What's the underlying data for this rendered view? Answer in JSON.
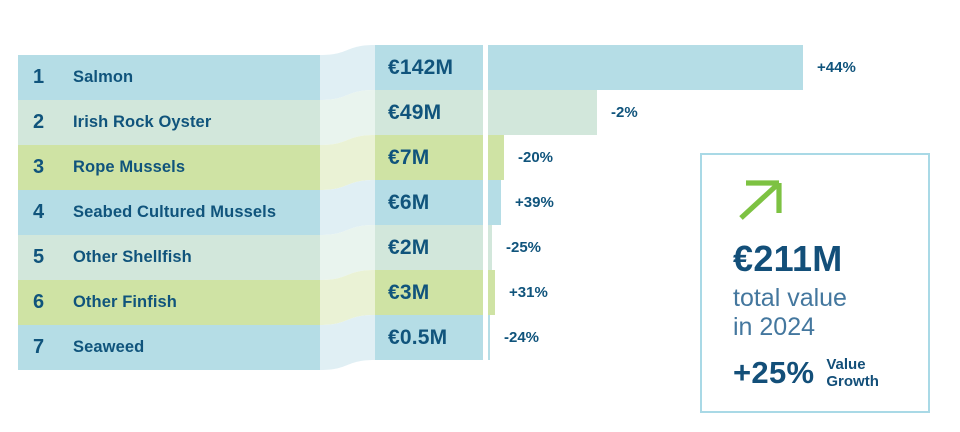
{
  "colors": {
    "navy_text": "#10547c",
    "card_navy": "#134f79",
    "steel_blue": "#44779e",
    "arrow_green": "#7dc242",
    "card_border": "#a9d9e6",
    "tones": {
      "blue": "#b5dde6",
      "mint": "#d2e7db",
      "green": "#cfe3a4"
    },
    "tones_light": {
      "blue": "#e0eff4",
      "mint": "#e9f4ee",
      "green": "#eaf2d5"
    }
  },
  "chart_data": {
    "type": "bar",
    "orientation": "horizontal",
    "unit": "EUR millions",
    "xlim": [
      0,
      142
    ],
    "grid": false,
    "legend": false,
    "rows": [
      {
        "rank": "1",
        "name": "Salmon",
        "value_label": "€142M",
        "value_meur": 142,
        "change_label": "+44%",
        "change_pct": 44,
        "tone": "blue"
      },
      {
        "rank": "2",
        "name": "Irish Rock Oyster",
        "value_label": "€49M",
        "value_meur": 49,
        "change_label": "-2%",
        "change_pct": -2,
        "tone": "mint"
      },
      {
        "rank": "3",
        "name": "Rope Mussels",
        "value_label": "€7M",
        "value_meur": 7,
        "change_label": "-20%",
        "change_pct": -20,
        "tone": "green"
      },
      {
        "rank": "4",
        "name": "Seabed Cultured Mussels",
        "value_label": "€6M",
        "value_meur": 6,
        "change_label": "+39%",
        "change_pct": 39,
        "tone": "blue"
      },
      {
        "rank": "5",
        "name": "Other Shellfish",
        "value_label": "€2M",
        "value_meur": 2,
        "change_label": "-25%",
        "change_pct": -25,
        "tone": "mint"
      },
      {
        "rank": "6",
        "name": "Other Finfish",
        "value_label": "€3M",
        "value_meur": 3,
        "change_label": "+31%",
        "change_pct": 31,
        "tone": "green"
      },
      {
        "rank": "7",
        "name": "Seaweed",
        "value_label": "€0.5M",
        "value_meur": 0.5,
        "change_label": "-24%",
        "change_pct": -24,
        "tone": "blue"
      }
    ]
  },
  "summary_card": {
    "arrow_icon": "trend-up-arrow",
    "total_value": "€211M",
    "caption_line1": "total value",
    "caption_line2": "in 2024",
    "growth_value": "+25%",
    "growth_label_line1": "Value",
    "growth_label_line2": "Growth"
  }
}
